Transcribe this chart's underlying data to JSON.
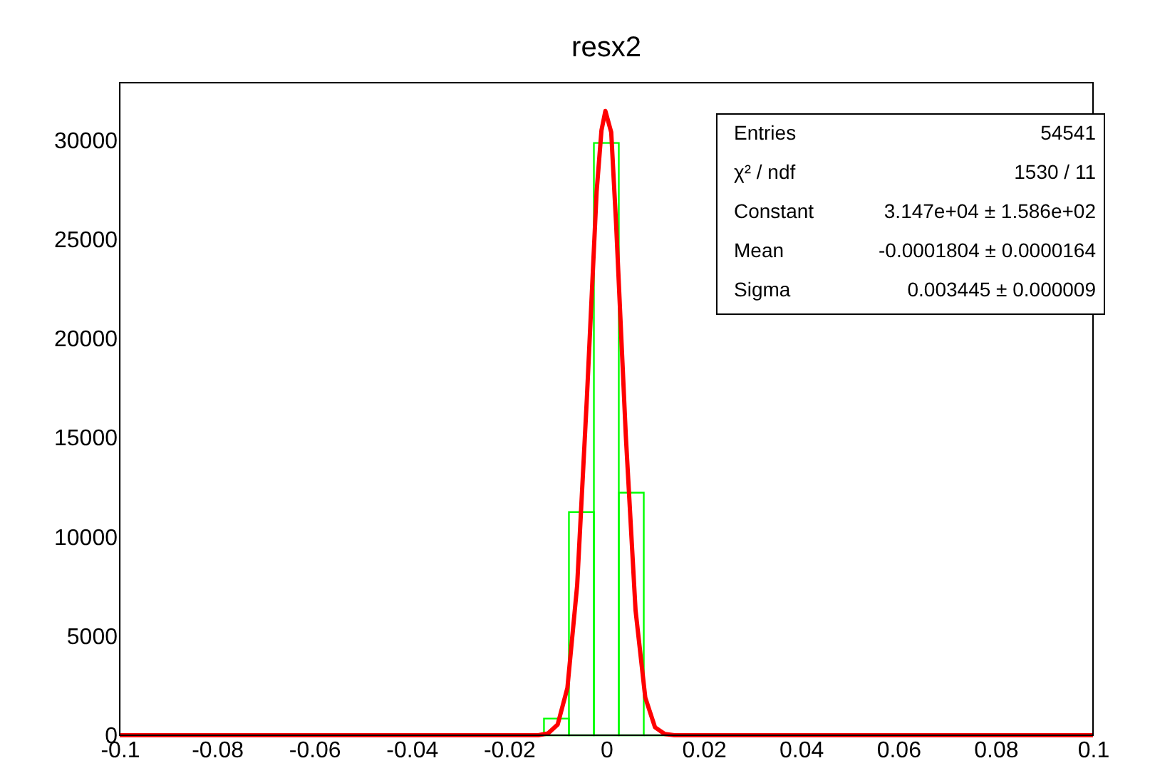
{
  "chart_data": {
    "type": "histogram",
    "title": "resx2",
    "bins": [
      -0.1,
      -0.09487,
      -0.08974,
      -0.08462,
      -0.07949,
      -0.07436,
      -0.06923,
      -0.0641,
      -0.05897,
      -0.05385,
      -0.04872,
      -0.04359,
      -0.03846,
      -0.03333,
      -0.02821,
      -0.02308,
      -0.01795,
      -0.01282,
      -0.00769,
      -0.00256,
      0.00256,
      0.00769,
      0.01282,
      0.01795,
      0.02308,
      0.02821,
      0.03333,
      0.03846,
      0.04359,
      0.04872,
      0.05385,
      0.05897,
      0.0641,
      0.06923,
      0.07436,
      0.07949,
      0.08462,
      0.08974,
      0.09487,
      0.1
    ],
    "series": [
      {
        "type": "histogram",
        "color": "#00ff00",
        "values": [
          0,
          0,
          0,
          0,
          0,
          0,
          0,
          0,
          0,
          0,
          0,
          0,
          0,
          0,
          0,
          0,
          0,
          840,
          11250,
          29860,
          12230,
          0,
          0,
          0,
          0,
          0,
          0,
          0,
          0,
          0,
          0,
          0,
          0,
          0,
          0,
          0,
          0,
          0,
          0
        ]
      },
      {
        "type": "line",
        "color": "#ff0000",
        "x": [
          -0.1,
          -0.014,
          -0.012,
          -0.01,
          -0.008,
          -0.006,
          -0.004,
          -0.002,
          -0.001,
          -0.0002,
          0.001,
          0.002,
          0.004,
          0.006,
          0.008,
          0.01,
          0.012,
          0.014,
          0.1
        ],
        "values": [
          0,
          0,
          90,
          540,
          2390,
          7550,
          17000,
          27400,
          30500,
          31470,
          30400,
          25800,
          15100,
          6300,
          1900,
          400,
          60,
          0,
          0
        ]
      }
    ],
    "xlim": [
      -0.1,
      0.1
    ],
    "xticks": [
      -0.1,
      -0.08,
      -0.06,
      -0.04,
      -0.02,
      0,
      0.02,
      0.04,
      0.06,
      0.08,
      0.1
    ],
    "ylim": [
      0,
      32900
    ],
    "yticks": [
      0,
      5000,
      10000,
      15000,
      20000,
      25000,
      30000
    ],
    "grid": false,
    "annotations": [
      "Entries",
      "54541",
      "χ² / ndf",
      "1530 / 11",
      "Constant",
      "3.147e+04 ± 1.586e+02",
      "Mean",
      "-0.0001804 ± 0.0000164",
      "Sigma",
      "0.003445 ± 0.000009"
    ]
  }
}
